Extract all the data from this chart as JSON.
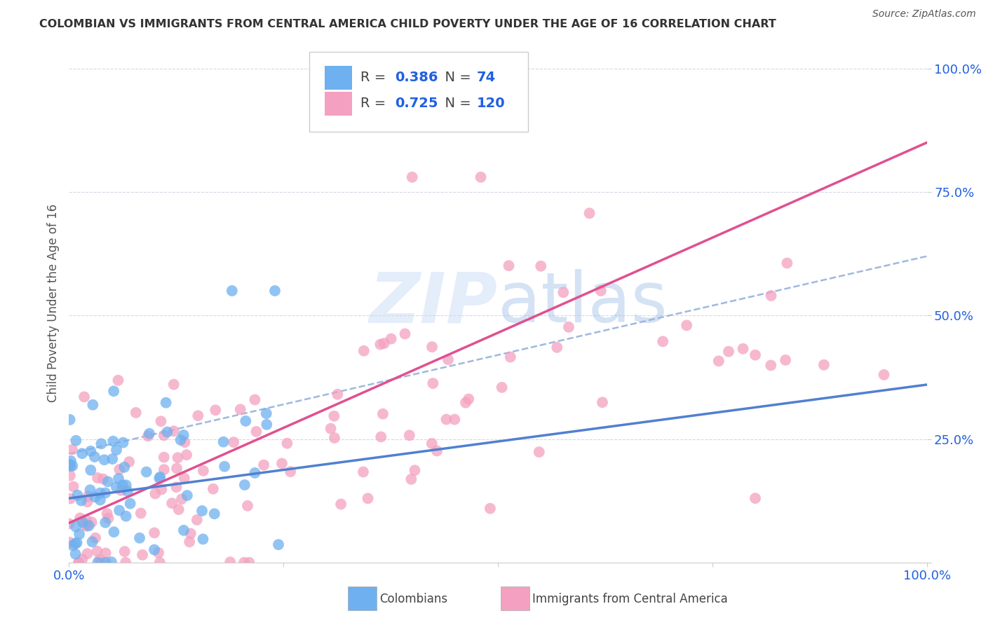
{
  "title": "COLOMBIAN VS IMMIGRANTS FROM CENTRAL AMERICA CHILD POVERTY UNDER THE AGE OF 16 CORRELATION CHART",
  "source": "Source: ZipAtlas.com",
  "ylabel": "Child Poverty Under the Age of 16",
  "x_tick_labels": [
    "0.0%",
    "",
    "",
    "",
    "100.0%"
  ],
  "y_tick_labels": [
    "",
    "25.0%",
    "50.0%",
    "75.0%",
    "100.0%"
  ],
  "colombians_R": 0.386,
  "colombians_N": 74,
  "central_america_R": 0.725,
  "central_america_N": 120,
  "blue_color": "#6eb0f0",
  "pink_color": "#f4a0c0",
  "blue_line_color": "#5080d0",
  "pink_line_color": "#e05090",
  "dash_line_color": "#a0b8e0",
  "legend_value_color": "#2060e0",
  "background_color": "#ffffff",
  "grid_color": "#d8d8e8",
  "text_color": "#555555",
  "title_color": "#333333",
  "seed": 12345,
  "colombians_label": "Colombians",
  "central_america_label": "Immigrants from Central America"
}
